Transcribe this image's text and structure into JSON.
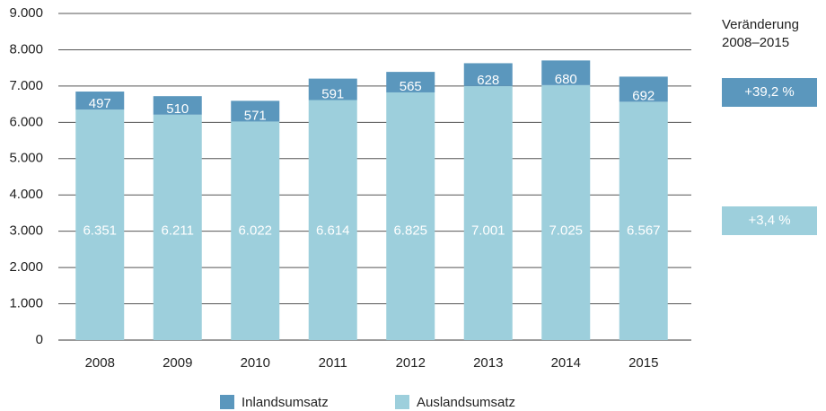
{
  "chart_data": {
    "type": "stacked_bar",
    "categories": [
      "2008",
      "2009",
      "2010",
      "2011",
      "2012",
      "2013",
      "2014",
      "2015"
    ],
    "series": [
      {
        "name": "Auslandsumsatz",
        "color": "#9dcfdc",
        "values": [
          6351,
          6211,
          6022,
          6614,
          6825,
          7001,
          7025,
          6567
        ],
        "value_labels": [
          "6.351",
          "6.211",
          "6.022",
          "6.614",
          "6.825",
          "7.001",
          "7.025",
          "6.567"
        ],
        "change": "+3,4 %"
      },
      {
        "name": "Inlandsumsatz",
        "color": "#5b97bd",
        "values": [
          497,
          510,
          571,
          591,
          565,
          628,
          680,
          692
        ],
        "change": "+39,2 %"
      }
    ],
    "ylim": [
      0,
      9000
    ],
    "yticks": [
      {
        "value": 0,
        "label": "0"
      },
      {
        "value": 1000,
        "label": "1.000"
      },
      {
        "value": 2000,
        "label": "2.000"
      },
      {
        "value": 3000,
        "label": "3.000"
      },
      {
        "value": 4000,
        "label": "4.000"
      },
      {
        "value": 5000,
        "label": "5.000"
      },
      {
        "value": 6000,
        "label": "6.000"
      },
      {
        "value": 7000,
        "label": "7.000"
      },
      {
        "value": 8000,
        "label": "8.000"
      },
      {
        "value": 9000,
        "label": "9.000"
      }
    ],
    "grid": true,
    "change_title": [
      "Veränderung",
      "2008–2015"
    ]
  }
}
